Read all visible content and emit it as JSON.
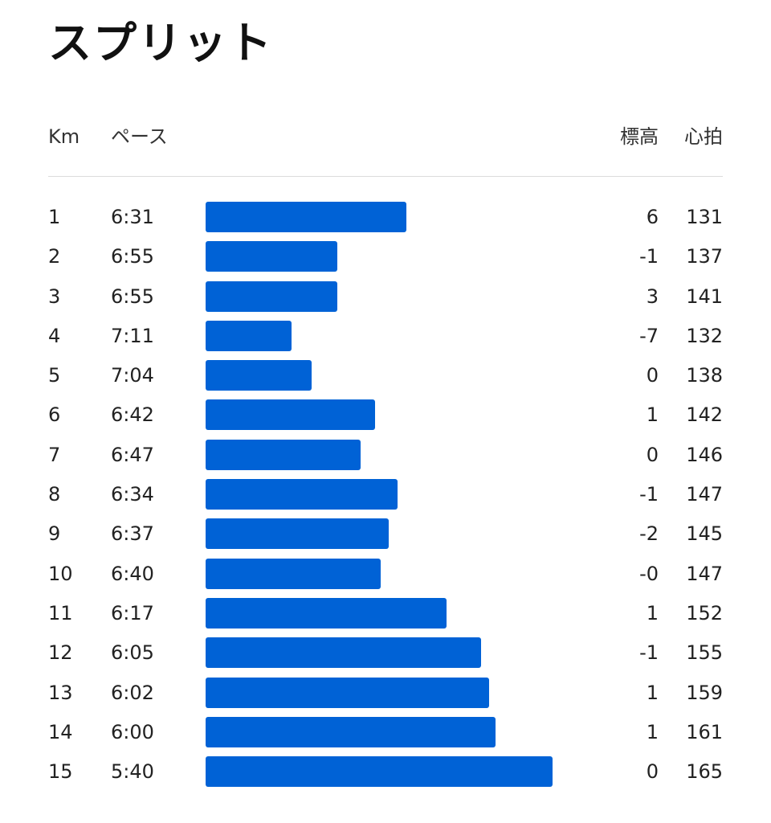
{
  "title": "スプリット",
  "columns": {
    "km": "Km",
    "pace": "ペース",
    "elevation": "標高",
    "heart_rate": "心拍"
  },
  "colors": {
    "bar": "#0062d6",
    "divider": "#dcdcdc"
  },
  "pace_scale_seconds": {
    "slowest": 431,
    "fastest": 340
  },
  "splits": [
    {
      "km": "1",
      "pace": "6:31",
      "pace_seconds": 391,
      "elevation": "6",
      "heart_rate": "131"
    },
    {
      "km": "2",
      "pace": "6:55",
      "pace_seconds": 415,
      "elevation": "-1",
      "heart_rate": "137"
    },
    {
      "km": "3",
      "pace": "6:55",
      "pace_seconds": 415,
      "elevation": "3",
      "heart_rate": "141"
    },
    {
      "km": "4",
      "pace": "7:11",
      "pace_seconds": 431,
      "elevation": "-7",
      "heart_rate": "132"
    },
    {
      "km": "5",
      "pace": "7:04",
      "pace_seconds": 424,
      "elevation": "0",
      "heart_rate": "138"
    },
    {
      "km": "6",
      "pace": "6:42",
      "pace_seconds": 402,
      "elevation": "1",
      "heart_rate": "142"
    },
    {
      "km": "7",
      "pace": "6:47",
      "pace_seconds": 407,
      "elevation": "0",
      "heart_rate": "146"
    },
    {
      "km": "8",
      "pace": "6:34",
      "pace_seconds": 394,
      "elevation": "-1",
      "heart_rate": "147"
    },
    {
      "km": "9",
      "pace": "6:37",
      "pace_seconds": 397,
      "elevation": "-2",
      "heart_rate": "145"
    },
    {
      "km": "10",
      "pace": "6:40",
      "pace_seconds": 400,
      "elevation": "-0",
      "heart_rate": "147"
    },
    {
      "km": "11",
      "pace": "6:17",
      "pace_seconds": 377,
      "elevation": "1",
      "heart_rate": "152"
    },
    {
      "km": "12",
      "pace": "6:05",
      "pace_seconds": 365,
      "elevation": "-1",
      "heart_rate": "155"
    },
    {
      "km": "13",
      "pace": "6:02",
      "pace_seconds": 362,
      "elevation": "1",
      "heart_rate": "159"
    },
    {
      "km": "14",
      "pace": "6:00",
      "pace_seconds": 360,
      "elevation": "1",
      "heart_rate": "161"
    },
    {
      "km": "15",
      "pace": "5:40",
      "pace_seconds": 340,
      "elevation": "0",
      "heart_rate": "165"
    }
  ]
}
